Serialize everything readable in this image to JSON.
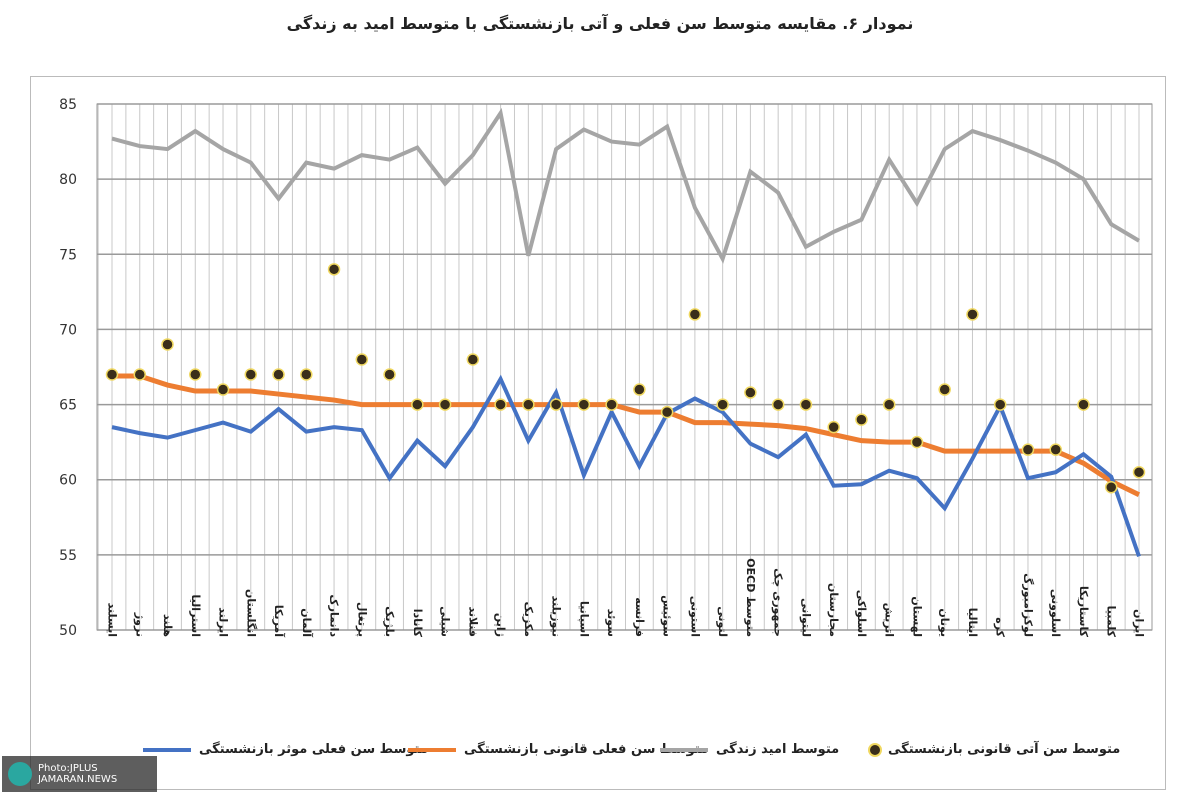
{
  "chart_data": {
    "type": "line",
    "title": "نمودار ۶. مقایسه متوسط سن فعلی و آتی بازنشستگی با متوسط امید به زندگی",
    "xlabel": "",
    "ylabel": "",
    "ylim": [
      50,
      85
    ],
    "yticks": [
      50,
      55,
      60,
      65,
      70,
      75,
      80,
      85
    ],
    "grid": true,
    "legend_position": "bottom",
    "categories": [
      "ایسلند",
      "نروژ",
      "هلند",
      "استرالیا",
      "ایرلند",
      "انگلستان",
      "آمریکا",
      "آلمان",
      "دانمارک",
      "پرتغال",
      "بلژیک",
      "کانادا",
      "شیلی",
      "فنلاند",
      "ژاپن",
      "مکزیک",
      "نیوزیلند",
      "اسپانیا",
      "سوئد",
      "فرانسه",
      "سوئیس",
      "استونی",
      "لتونی",
      "متوسط OECD",
      "جمهوری چک",
      "لیتوانی",
      "مجارستان",
      "اسلواکی",
      "اتریش",
      "لهستان",
      "یونان",
      "ایتالیا",
      "کره",
      "لوکزامبورگ",
      "اسلوونی",
      "کاستاریکا",
      "کلمبیا",
      "ایران"
    ],
    "series": [
      {
        "name": "متوسط سن فعلی موثر بازنشستگی",
        "kind": "line",
        "color": "#4472c4",
        "values": [
          63.5,
          63.1,
          62.8,
          63.3,
          63.8,
          63.2,
          64.7,
          63.2,
          63.5,
          63.3,
          60.1,
          62.6,
          60.9,
          63.5,
          66.7,
          62.6,
          65.8,
          60.3,
          64.5,
          60.9,
          64.4,
          65.4,
          64.5,
          62.4,
          61.5,
          63.0,
          59.6,
          59.7,
          60.6,
          60.1,
          58.1,
          61.4,
          64.9,
          60.1,
          60.5,
          61.7,
          60.2,
          54.9
        ]
      },
      {
        "name": "متوسط سن فعلی قانونی بازنشستگی",
        "kind": "line",
        "color": "#ed7d31",
        "values": [
          66.9,
          66.9,
          66.3,
          65.9,
          65.9,
          65.9,
          65.7,
          65.5,
          65.3,
          65.0,
          65.0,
          65.0,
          65.0,
          65.0,
          65.0,
          65.0,
          65.0,
          65.0,
          65.0,
          64.5,
          64.5,
          63.8,
          63.8,
          63.7,
          63.6,
          63.4,
          63.0,
          62.6,
          62.5,
          62.5,
          61.9,
          61.9,
          61.9,
          61.9,
          61.9,
          61.1,
          59.9,
          59.0
        ]
      },
      {
        "name": "متوسط امید زندگی",
        "kind": "line",
        "color": "#a5a5a5",
        "values": [
          82.7,
          82.2,
          82.0,
          83.2,
          82.0,
          81.1,
          78.7,
          81.1,
          80.7,
          81.6,
          81.3,
          82.1,
          79.7,
          81.6,
          84.4,
          74.9,
          82.0,
          83.3,
          82.5,
          82.3,
          83.5,
          78.1,
          74.7,
          80.5,
          79.1,
          75.5,
          76.5,
          77.3,
          81.3,
          78.4,
          82.0,
          83.2,
          82.6,
          81.9,
          81.1,
          80.0,
          77.0,
          75.9
        ]
      },
      {
        "name": "متوسط سن آتی قانونی بازنشستگی",
        "kind": "scatter",
        "color": "#3a2e1a",
        "values": [
          67,
          67,
          69,
          67,
          66,
          67,
          67,
          67,
          74,
          68,
          67,
          65,
          65,
          68,
          65,
          65,
          65,
          65,
          65,
          66,
          64.5,
          71,
          65,
          65.8,
          65,
          65,
          63.5,
          64,
          65,
          62.5,
          66,
          71,
          65,
          62,
          62,
          65,
          59.5,
          60.5
        ]
      }
    ]
  },
  "watermark": {
    "line1": "Photo:JPLUS",
    "line2": "JAMARAN.NEWS"
  }
}
